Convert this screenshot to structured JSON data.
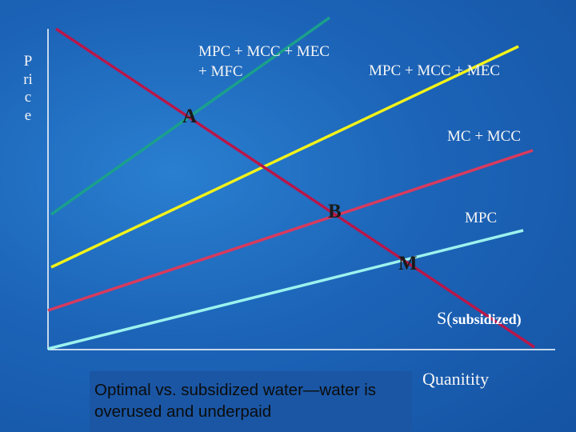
{
  "axes": {
    "y_label": "Price",
    "x_label": "Quanitity"
  },
  "curves": [
    {
      "id": "mpc_mcc_mec_mfc",
      "label": "MPC + MCC + MEC + MFC",
      "color": "#1aa08c"
    },
    {
      "id": "mpc_mcc_mec",
      "label": "MPC +  MCC + MEC",
      "color": "#f2f21a"
    },
    {
      "id": "mc_mcc",
      "label": "MC + MCC",
      "color": "#d83a5e"
    },
    {
      "id": "mpc",
      "label": "MPC",
      "color": "#9cf2ee"
    },
    {
      "id": "demand",
      "label": "",
      "color": "#b8174a"
    }
  ],
  "points": {
    "a": "A",
    "b": "B",
    "m": "M"
  },
  "subsidized_label": {
    "prefix": "S(",
    "text": "subsidized)"
  },
  "caption": "Optimal vs. subsidized water—water is overused and underpaid",
  "colors": {
    "background": "#1c64b8",
    "axis": "#ffffff"
  }
}
